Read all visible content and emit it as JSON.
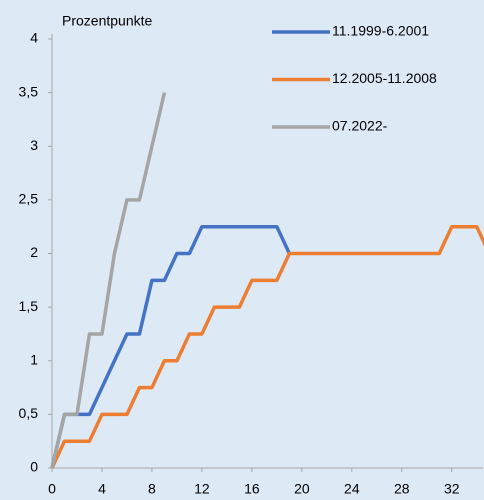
{
  "chart_data": {
    "type": "line",
    "y_label": "Prozentpunkte",
    "xlim": [
      0,
      34.5
    ],
    "xticks": [
      0,
      4,
      8,
      12,
      16,
      20,
      24,
      28,
      32
    ],
    "ylim": [
      0,
      4
    ],
    "yticks": [
      0,
      {
        "value": 0.5,
        "label": "0,5"
      },
      1,
      {
        "value": 1.5,
        "label": "1,5"
      },
      2,
      {
        "value": 2.5,
        "label": "2,5"
      },
      3,
      {
        "value": 3.5,
        "label": "3,5"
      },
      4
    ],
    "grid": false,
    "legend": "top-right",
    "series": [
      {
        "name": "11.1999-6.2001",
        "color": "#4472c4",
        "x": [
          0,
          1,
          2,
          3,
          4,
          5,
          6,
          7,
          8,
          9,
          10,
          11,
          12,
          13,
          14,
          15,
          16,
          17,
          18,
          19
        ],
        "values": [
          0,
          0.5,
          0.5,
          0.5,
          0.75,
          1,
          1.25,
          1.25,
          1.75,
          1.75,
          2,
          2,
          2.25,
          2.25,
          2.25,
          2.25,
          2.25,
          2.25,
          2.25,
          2
        ]
      },
      {
        "name": "12.2005-11.2008",
        "color": "#ed7d31",
        "x": [
          0,
          1,
          2,
          3,
          4,
          5,
          6,
          7,
          8,
          9,
          10,
          11,
          12,
          13,
          14,
          15,
          16,
          17,
          18,
          19,
          20,
          21,
          22,
          23,
          24,
          25,
          26,
          27,
          28,
          29,
          30,
          31,
          32,
          33,
          34,
          35
        ],
        "values": [
          0,
          0.25,
          0.25,
          0.25,
          0.5,
          0.5,
          0.5,
          0.75,
          0.75,
          1,
          1,
          1.25,
          1.25,
          1.5,
          1.5,
          1.5,
          1.75,
          1.75,
          1.75,
          2,
          2,
          2,
          2,
          2,
          2,
          2,
          2,
          2,
          2,
          2,
          2,
          2,
          2.25,
          2.25,
          2.25,
          2
        ]
      },
      {
        "name": "07.2022-",
        "color": "#a5a5a5",
        "x": [
          0,
          1,
          2,
          3,
          4,
          5,
          6,
          7,
          8,
          9
        ],
        "values": [
          0,
          0.5,
          0.5,
          1.25,
          1.25,
          2,
          2.5,
          2.5,
          3,
          3.5
        ]
      }
    ]
  }
}
